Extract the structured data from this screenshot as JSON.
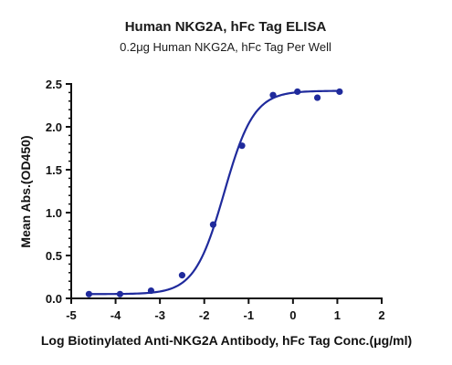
{
  "chart_data": {
    "type": "scatter",
    "title": "Human NKG2A, hFc Tag ELISA",
    "subtitle": "0.2μg Human NKG2A, hFc Tag Per Well",
    "xlabel": "Log Biotinylated Anti-NKG2A Antibody, hFc Tag Conc.(μg/ml)",
    "ylabel": "Mean Abs.(OD450)",
    "xlim": [
      -5,
      2
    ],
    "ylim": [
      0,
      2.5
    ],
    "x_ticks": [
      "-5",
      "-4",
      "-3",
      "-2",
      "-1",
      "0",
      "1",
      "2"
    ],
    "y_ticks": [
      "0.0",
      "0.5",
      "1.0",
      "1.5",
      "2.0",
      "2.5"
    ],
    "grid": false,
    "color": "#1f2a9c",
    "series": [
      {
        "points": [
          {
            "x": -4.6,
            "y": 0.05
          },
          {
            "x": -3.9,
            "y": 0.05
          },
          {
            "x": -3.2,
            "y": 0.09
          },
          {
            "x": -2.5,
            "y": 0.27
          },
          {
            "x": -1.8,
            "y": 0.86
          },
          {
            "x": -1.15,
            "y": 1.78
          },
          {
            "x": -0.45,
            "y": 2.37
          },
          {
            "x": 0.1,
            "y": 2.41
          },
          {
            "x": 0.55,
            "y": 2.34
          },
          {
            "x": 1.05,
            "y": 2.41
          }
        ],
        "fit": {
          "bottom": 0.05,
          "top": 2.42,
          "logEC50": -1.55,
          "hill": 1.3
        }
      }
    ]
  }
}
